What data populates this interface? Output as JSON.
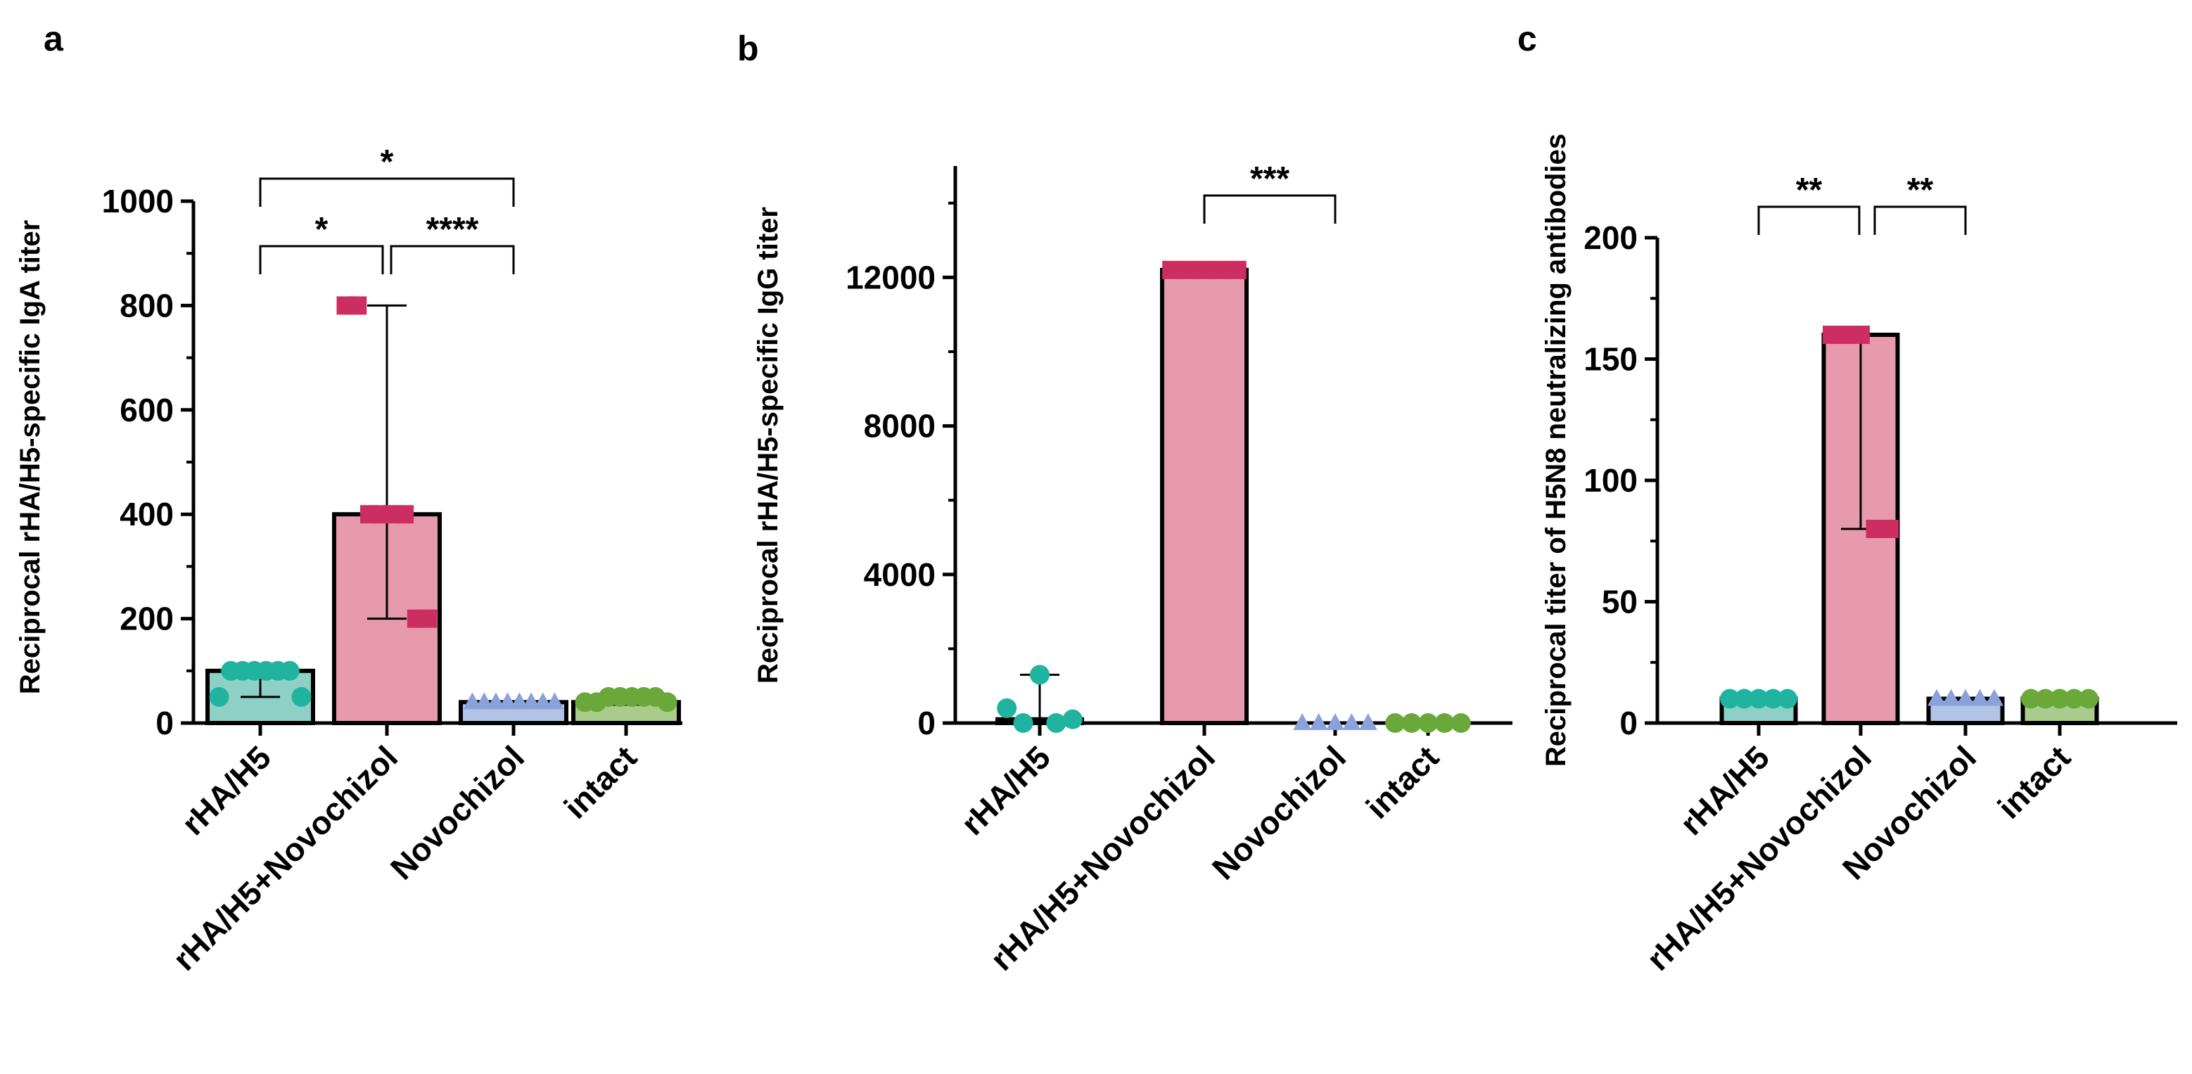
{
  "panels": [
    {
      "letter": "a",
      "chart_data": {
        "type": "bar",
        "ylabel": "Reciprocal rHA/H5-specific IgA titer",
        "ylim": [
          0,
          1000
        ],
        "yticks": [
          0,
          200,
          400,
          600,
          800,
          1000
        ],
        "categories": [
          "rHA/H5",
          "rHA/H5+Novochizol",
          "Novochizol",
          "intact"
        ],
        "values": [
          100,
          400,
          40,
          40
        ],
        "points": [
          [
            50,
            100,
            100,
            100,
            100,
            100,
            100,
            50
          ],
          [
            800,
            800,
            400,
            400,
            400,
            400,
            200,
            200
          ],
          [
            40,
            40,
            40,
            40,
            40,
            40,
            40,
            40
          ],
          [
            40,
            40,
            50,
            50,
            50,
            50,
            50,
            40
          ]
        ],
        "error": [
          [
            50,
            100
          ],
          [
            200,
            800
          ],
          [
            40,
            40
          ],
          [
            35,
            50
          ]
        ],
        "significance": [
          {
            "from": 0,
            "to": 1,
            "label": "*"
          },
          {
            "from": 1,
            "to": 2,
            "label": "****"
          },
          {
            "from": 0,
            "to": 2,
            "label": "*"
          }
        ]
      }
    },
    {
      "letter": "b",
      "chart_data": {
        "type": "bar",
        "ylabel": "Reciprocal rHA/H5-specific IgG titer",
        "ylim": [
          0,
          15000
        ],
        "yticks": [
          0,
          4000,
          8000,
          12000
        ],
        "categories": [
          "rHA/H5",
          "rHA/H5+Novochizol",
          "Novochizol",
          "intact"
        ],
        "values": [
          100,
          12200,
          0,
          0
        ],
        "points": [
          [
            400,
            0,
            1300,
            0,
            100
          ],
          [
            12200,
            12200,
            12200,
            12200,
            12200
          ],
          [
            0,
            0,
            0,
            0,
            0
          ],
          [
            0,
            0,
            0,
            0,
            0
          ]
        ],
        "error": [
          [
            0,
            1300
          ],
          [
            12200,
            12200
          ],
          [
            0,
            0
          ],
          [
            0,
            0
          ]
        ],
        "significance": [
          {
            "from": 1,
            "to": 2,
            "label": "***"
          }
        ]
      }
    },
    {
      "letter": "c",
      "chart_data": {
        "type": "bar",
        "ylabel": "Reciprocal titer of H5N8 neutralizing antibodies",
        "ylim": [
          0,
          200
        ],
        "yticks": [
          0,
          50,
          100,
          150,
          200
        ],
        "categories": [
          "rHA/H5",
          "rHA/H5+Novochizol",
          "Novochizol",
          "intact"
        ],
        "values": [
          10,
          160,
          10,
          10
        ],
        "points": [
          [
            10,
            10,
            10,
            10,
            10
          ],
          [
            160,
            160,
            160,
            80,
            80
          ],
          [
            10,
            10,
            10,
            10,
            10
          ],
          [
            10,
            10,
            10,
            10,
            10
          ]
        ],
        "error": [
          [
            10,
            10
          ],
          [
            80,
            160
          ],
          [
            10,
            10
          ],
          [
            10,
            10
          ]
        ],
        "significance": [
          {
            "from": 0,
            "to": 1,
            "label": "**"
          },
          {
            "from": 1,
            "to": 2,
            "label": "**"
          }
        ]
      }
    }
  ],
  "colors": {
    "fills": [
      "#8fd0c6",
      "#e79aae",
      "#b2c4e6",
      "#a9cc8c"
    ],
    "markers": [
      "#1fb3a0",
      "#cc2e62",
      "#8aa2dc",
      "#6aa83a"
    ],
    "markerShapes": [
      "circle",
      "square",
      "triangle",
      "circle"
    ],
    "axis": "#000000"
  }
}
